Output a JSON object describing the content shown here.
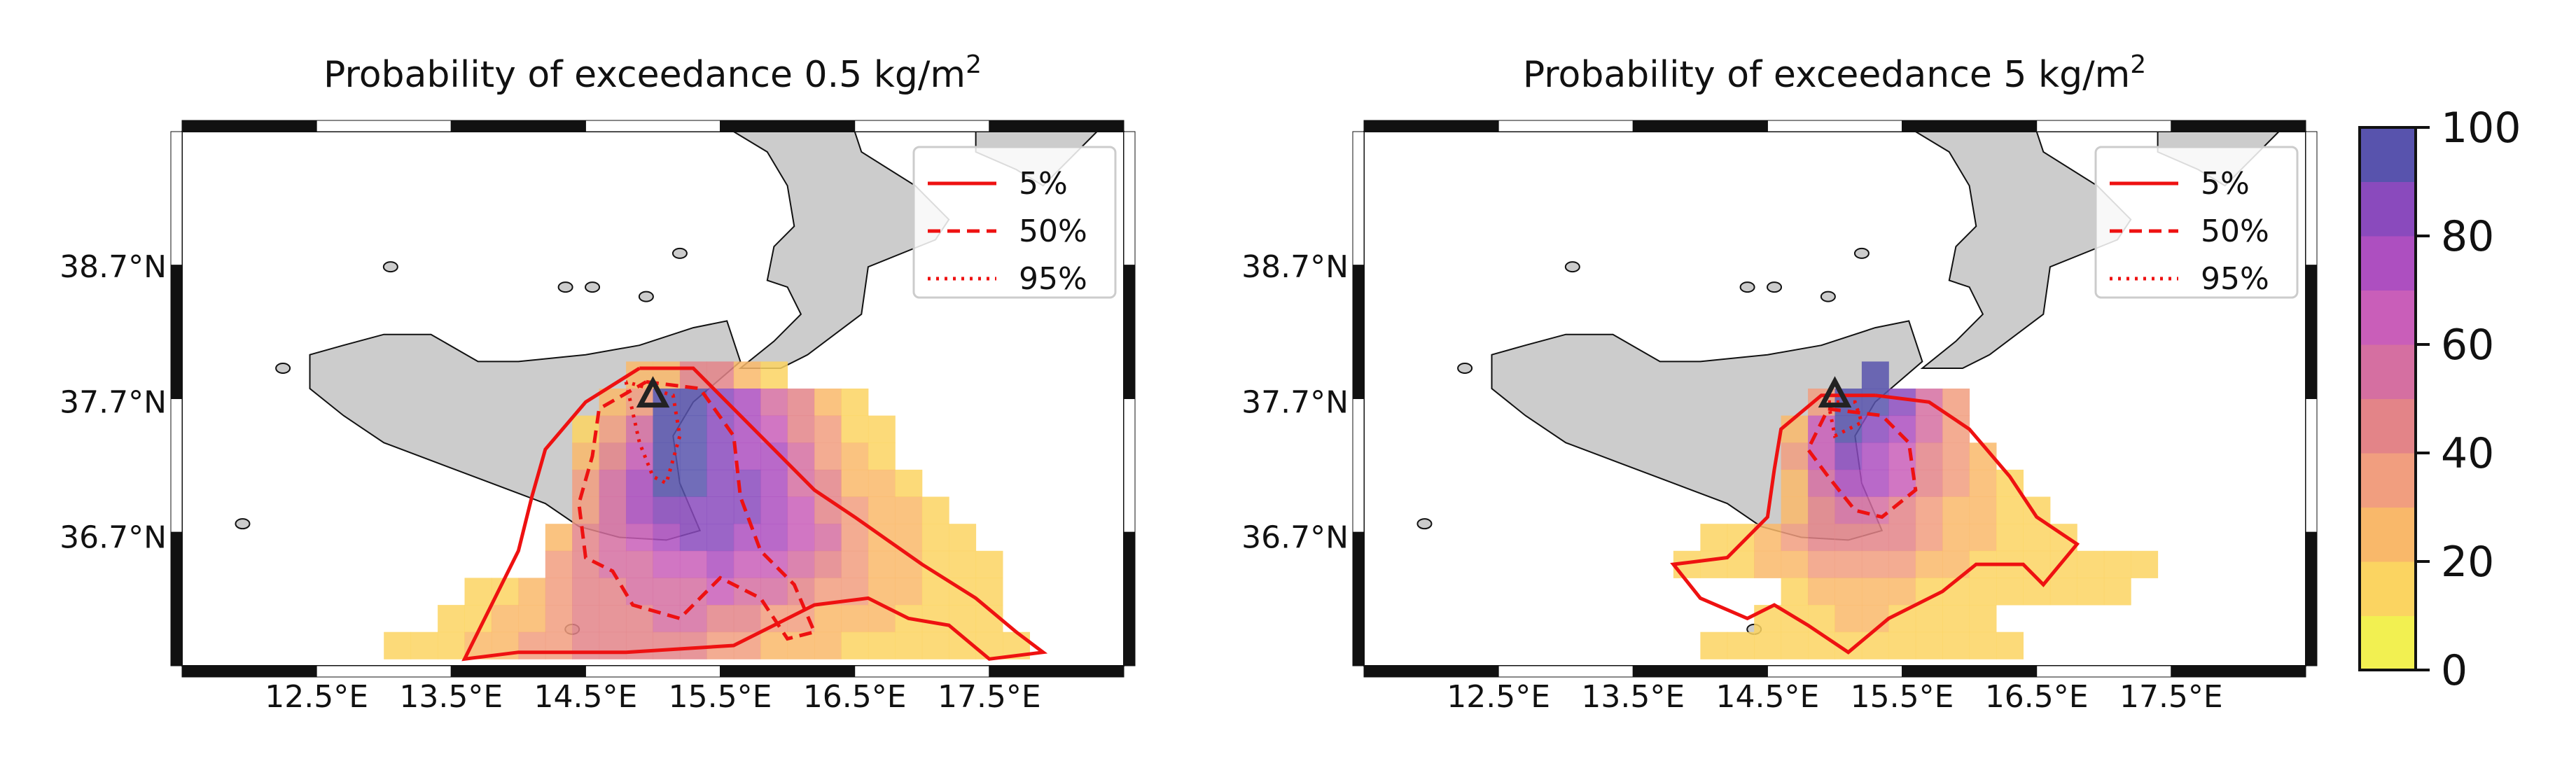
{
  "chart_data": {
    "type": "heatmap",
    "color_scale": {
      "ticks": [
        "0",
        "20",
        "40",
        "60",
        "80",
        "100"
      ],
      "range": [
        0,
        100
      ],
      "step": 10,
      "colors": [
        "#f2f051",
        "#fbd461",
        "#f9b86a",
        "#f19e7f",
        "#e38488",
        "#d56fa1",
        "#c95eb9",
        "#ad4fc0",
        "#8a4abd",
        "#5853ad"
      ]
    },
    "lon_ticks": [
      "12.5°E",
      "13.5°E",
      "14.5°E",
      "15.5°E",
      "16.5°E",
      "17.5°E"
    ],
    "lat_ticks": [
      "38.7°N",
      "37.7°N",
      "36.7°N"
    ],
    "lon_tick_values": [
      12.5,
      13.5,
      14.5,
      15.5,
      16.5,
      17.5
    ],
    "lat_tick_values": [
      38.7,
      37.7,
      36.7
    ],
    "xlim": [
      11.5,
      18.5
    ],
    "ylim": [
      35.75,
      39.7
    ],
    "grid": false,
    "legend_placement": "top-right",
    "legend": [
      {
        "label": "5%",
        "style": "solid"
      },
      {
        "label": "50%",
        "style": "dashed"
      },
      {
        "label": "95%",
        "style": "dotted"
      }
    ],
    "volcano": {
      "lon": 15.0,
      "lat": 37.75
    },
    "cell_size_deg": 0.2,
    "panels": [
      {
        "title": "Probability of exceedance 0.5 kg/m",
        "title_sup": "2",
        "rows": [
          {
            "lat": 37.9,
            "lon_start": 14.8,
            "values": [
              25,
              25,
              40,
              40,
              25,
              15
            ]
          },
          {
            "lat": 37.7,
            "lon_start": 14.6,
            "values": [
              25,
              35,
              100,
              92,
              85,
              70,
              55,
              40,
              20,
              15
            ]
          },
          {
            "lat": 37.5,
            "lon_start": 14.4,
            "values": [
              15,
              35,
              55,
              100,
              95,
              85,
              75,
              65,
              45,
              30,
              15,
              15
            ]
          },
          {
            "lat": 37.3,
            "lon_start": 14.4,
            "values": [
              25,
              45,
              65,
              100,
              95,
              85,
              75,
              70,
              50,
              35,
              25,
              15
            ]
          },
          {
            "lat": 37.1,
            "lon_start": 14.4,
            "values": [
              30,
              50,
              75,
              95,
              90,
              85,
              80,
              70,
              55,
              40,
              25,
              20,
              15
            ]
          },
          {
            "lat": 36.9,
            "lon_start": 14.4,
            "values": [
              35,
              55,
              70,
              85,
              85,
              85,
              80,
              75,
              60,
              45,
              30,
              25,
              20,
              15
            ]
          },
          {
            "lat": 36.7,
            "lon_start": 14.2,
            "values": [
              25,
              40,
              55,
              65,
              75,
              80,
              80,
              75,
              70,
              60,
              50,
              35,
              25,
              20,
              15,
              15
            ]
          },
          {
            "lat": 36.5,
            "lon_start": 14.2,
            "values": [
              30,
              45,
              55,
              55,
              60,
              65,
              70,
              65,
              60,
              55,
              45,
              35,
              25,
              20,
              15,
              15,
              10
            ]
          },
          {
            "lat": 36.3,
            "lon_start": 13.6,
            "values": [
              15,
              15,
              20,
              30,
              40,
              45,
              50,
              55,
              55,
              60,
              55,
              50,
              45,
              35,
              30,
              25,
              20,
              15,
              15,
              15
            ]
          },
          {
            "lat": 36.1,
            "lon_start": 13.4,
            "values": [
              10,
              15,
              20,
              25,
              30,
              40,
              45,
              45,
              50,
              50,
              45,
              40,
              35,
              30,
              25,
              20,
              20,
              15,
              15,
              10,
              10
            ]
          },
          {
            "lat": 35.9,
            "lon_start": 13.0,
            "values": [
              10,
              10,
              15,
              20,
              25,
              30,
              35,
              40,
              40,
              45,
              45,
              40,
              35,
              30,
              25,
              25,
              20,
              15,
              15,
              15,
              10,
              10,
              10,
              10
            ]
          }
        ],
        "contours": {
          "p5": [
            [
              14.9,
              37.95
            ],
            [
              15.3,
              37.95
            ],
            [
              15.8,
              37.45
            ],
            [
              16.2,
              37.05
            ],
            [
              16.5,
              36.85
            ],
            [
              17.0,
              36.5
            ],
            [
              17.4,
              36.25
            ],
            [
              17.7,
              36.0
            ],
            [
              17.9,
              35.85
            ],
            [
              17.5,
              35.8
            ],
            [
              17.2,
              36.05
            ],
            [
              16.9,
              36.1
            ],
            [
              16.6,
              36.25
            ],
            [
              16.2,
              36.2
            ],
            [
              15.9,
              36.05
            ],
            [
              15.6,
              35.9
            ],
            [
              14.8,
              35.85
            ],
            [
              14.0,
              35.85
            ],
            [
              13.6,
              35.8
            ],
            [
              13.8,
              36.2
            ],
            [
              14.0,
              36.6
            ],
            [
              14.1,
              37.0
            ],
            [
              14.2,
              37.35
            ],
            [
              14.5,
              37.7
            ],
            [
              14.9,
              37.95
            ]
          ],
          "p50": [
            [
              14.95,
              37.85
            ],
            [
              15.35,
              37.8
            ],
            [
              15.6,
              37.45
            ],
            [
              15.65,
              37.0
            ],
            [
              15.8,
              36.6
            ],
            [
              16.05,
              36.35
            ],
            [
              16.2,
              36.0
            ],
            [
              16.0,
              35.95
            ],
            [
              15.8,
              36.25
            ],
            [
              15.5,
              36.4
            ],
            [
              15.2,
              36.1
            ],
            [
              14.85,
              36.2
            ],
            [
              14.7,
              36.45
            ],
            [
              14.5,
              36.55
            ],
            [
              14.45,
              36.95
            ],
            [
              14.55,
              37.3
            ],
            [
              14.6,
              37.65
            ],
            [
              14.95,
              37.85
            ]
          ],
          "p95": [
            [
              14.8,
              37.85
            ],
            [
              14.9,
              37.4
            ],
            [
              15.0,
              37.15
            ],
            [
              15.1,
              37.1
            ],
            [
              15.2,
              37.45
            ],
            [
              15.15,
              37.75
            ],
            [
              14.8,
              37.85
            ]
          ]
        }
      },
      {
        "title": "Probability of exceedance 5 kg/m",
        "title_sup": "2",
        "rows": [
          {
            "lat": 37.9,
            "lon_start": 15.2,
            "values": [
              95
            ]
          },
          {
            "lat": 37.7,
            "lon_start": 14.8,
            "values": [
              30,
              95,
              100,
              80,
              55,
              30
            ]
          },
          {
            "lat": 37.5,
            "lon_start": 14.6,
            "values": [
              25,
              60,
              90,
              85,
              70,
              50,
              35
            ]
          },
          {
            "lat": 37.3,
            "lon_start": 14.6,
            "values": [
              30,
              65,
              80,
              75,
              65,
              45,
              30,
              20
            ]
          },
          {
            "lat": 37.1,
            "lon_start": 14.6,
            "values": [
              25,
              55,
              70,
              70,
              60,
              40,
              30,
              20,
              15
            ]
          },
          {
            "lat": 36.9,
            "lon_start": 14.6,
            "values": [
              25,
              45,
              55,
              55,
              45,
              35,
              25,
              20,
              15,
              10
            ]
          },
          {
            "lat": 36.7,
            "lon_start": 14.0,
            "values": [
              10,
              15,
              20,
              30,
              40,
              45,
              45,
              40,
              30,
              25,
              20,
              15,
              10,
              10
            ]
          },
          {
            "lat": 36.5,
            "lon_start": 13.8,
            "values": [
              10,
              10,
              15,
              20,
              25,
              30,
              35,
              35,
              30,
              25,
              20,
              15,
              15,
              10,
              10,
              10,
              10,
              10
            ]
          },
          {
            "lat": 36.3,
            "lon_start": 14.6,
            "values": [
              15,
              20,
              25,
              25,
              20,
              15,
              10,
              10,
              10,
              10,
              10,
              10,
              10
            ]
          },
          {
            "lat": 36.1,
            "lon_start": 14.4,
            "values": [
              10,
              15,
              15,
              20,
              20,
              15,
              10,
              10,
              10
            ]
          },
          {
            "lat": 35.9,
            "lon_start": 14.0,
            "values": [
              10,
              10,
              10,
              10,
              15,
              15,
              15,
              10,
              10,
              10,
              10,
              10
            ]
          }
        ],
        "contours": {
          "p5": [
            [
              15.3,
              37.75
            ],
            [
              15.7,
              37.7
            ],
            [
              16.0,
              37.5
            ],
            [
              16.3,
              37.15
            ],
            [
              16.5,
              36.85
            ],
            [
              16.8,
              36.65
            ],
            [
              16.55,
              36.35
            ],
            [
              16.4,
              36.5
            ],
            [
              16.05,
              36.5
            ],
            [
              15.8,
              36.3
            ],
            [
              15.4,
              36.1
            ],
            [
              15.1,
              35.85
            ],
            [
              14.8,
              36.05
            ],
            [
              14.55,
              36.2
            ],
            [
              14.35,
              36.1
            ],
            [
              14.0,
              36.25
            ],
            [
              13.8,
              36.5
            ],
            [
              14.2,
              36.55
            ],
            [
              14.5,
              36.85
            ],
            [
              14.55,
              37.2
            ],
            [
              14.6,
              37.5
            ],
            [
              14.9,
              37.75
            ],
            [
              15.3,
              37.75
            ]
          ],
          "p50": [
            [
              14.95,
              37.65
            ],
            [
              15.35,
              37.6
            ],
            [
              15.55,
              37.4
            ],
            [
              15.6,
              37.05
            ],
            [
              15.35,
              36.85
            ],
            [
              15.15,
              36.9
            ],
            [
              14.95,
              37.15
            ],
            [
              14.8,
              37.35
            ],
            [
              14.95,
              37.65
            ]
          ],
          "p95": [
            [
              14.95,
              37.7
            ],
            [
              15.15,
              37.7
            ],
            [
              15.2,
              37.55
            ],
            [
              15.0,
              37.45
            ],
            [
              14.95,
              37.7
            ]
          ]
        }
      }
    ]
  }
}
